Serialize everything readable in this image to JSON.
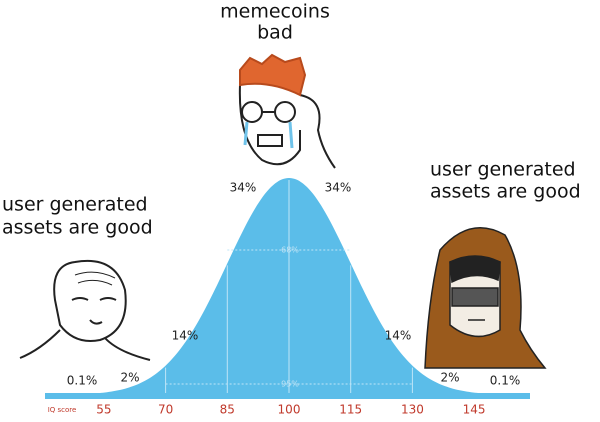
{
  "captions": {
    "top": [
      "memecoins",
      "bad"
    ],
    "left": [
      "user generated",
      "assets are good"
    ],
    "right": [
      "user generated",
      "assets are good"
    ]
  },
  "regions": [
    "0.1%",
    "2%",
    "14%",
    "34%",
    "34%",
    "14%",
    "2%",
    "0.1%"
  ],
  "bands": [
    "68%",
    "95%"
  ],
  "axis": {
    "label": "IQ score",
    "ticks": [
      55,
      70,
      85,
      100,
      115,
      130,
      145
    ]
  }
}
